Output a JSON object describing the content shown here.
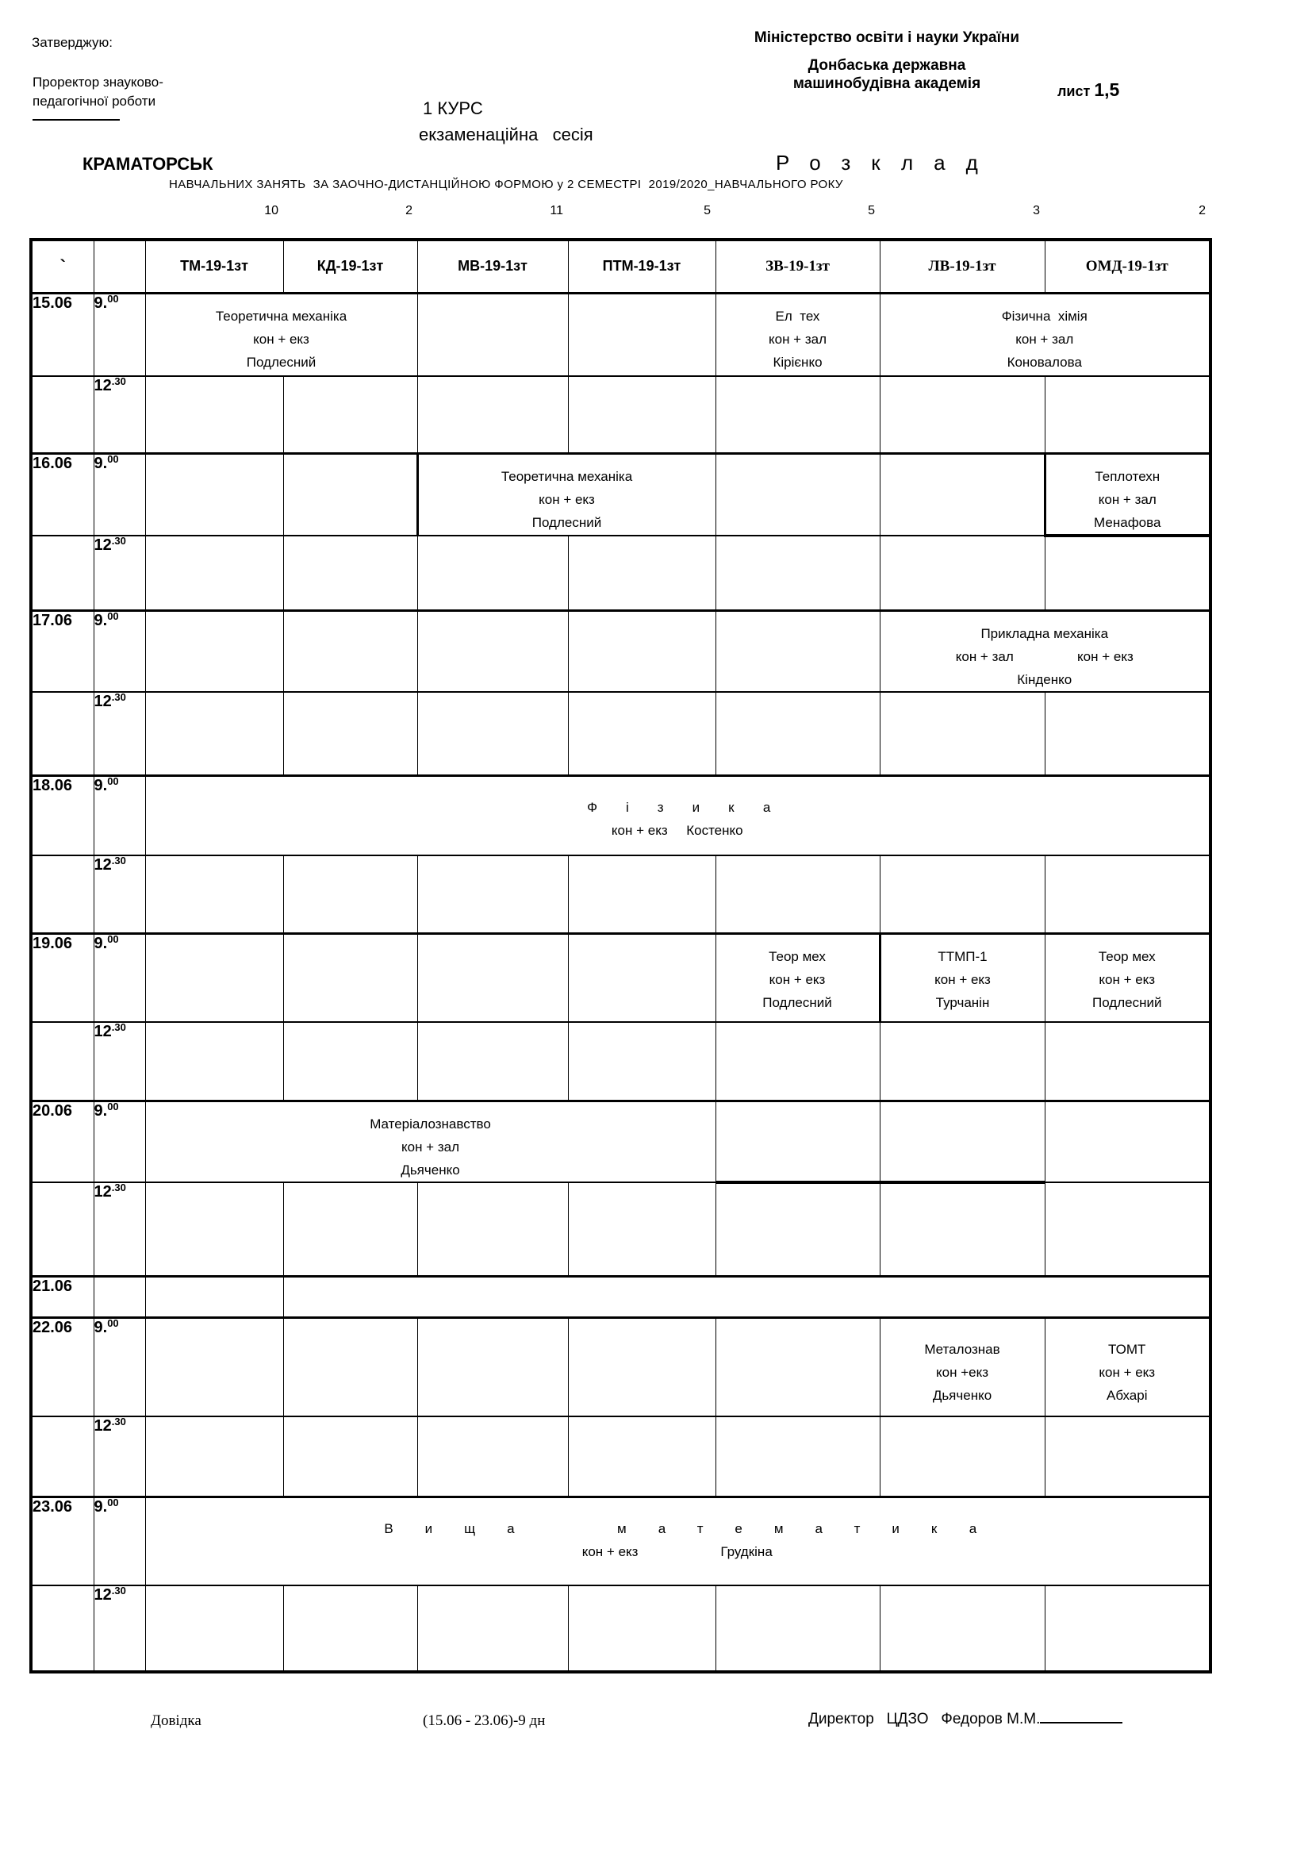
{
  "top_left": {
    "approve": "Затверджую:",
    "prorector_1": "Проректор знауково-",
    "prorector_2": "педагогічної роботи",
    "city": "КРАМАТОРСЬК"
  },
  "top_center": {
    "course": "1 КУРС",
    "session": "екзаменаційна   сесія"
  },
  "top_right": {
    "ministry": "Міністерство освіти і науки України",
    "academy_1": "Донбаська державна",
    "academy_2": "машинобудівна академія",
    "sheet_label": "лист",
    "sheet_value": "1,5",
    "title": "Розклад",
    "subtitle": "НАВЧАЛЬНИХ ЗАНЯТЬ  ЗА ЗАОЧНО-ДИСТАНЦІЙНОЮ ФОРМОЮ у 2 СЕМЕСТРІ  2019/2020_НАВЧАЛЬНОГО РОКУ"
  },
  "counts": [
    "10",
    "2",
    "11",
    "5",
    "5",
    "3",
    "2"
  ],
  "groups": [
    "ТМ-19-1зт",
    "КД-19-1зт",
    "МВ-19-1зт",
    "ПТМ-19-1зт",
    "ЗВ-19-1зт",
    "ЛВ-19-1зт",
    "ОМД-19-1зт"
  ],
  "corner_marker": "`",
  "rows": [
    {
      "date": "15.06",
      "time_b": "9.",
      "time_s": "00",
      "h": 105,
      "sep": "block",
      "cells": [
        {
          "span": 2,
          "lines": [
            "Теоретична механіка",
            "кон + екз",
            "Подлесний"
          ]
        },
        {
          "span": 1
        },
        {
          "span": 1
        },
        {
          "span": 1,
          "lines": [
            "Ел  тех",
            "кон + зал",
            "Кірієнко"
          ]
        },
        {
          "span": 2,
          "lines": [
            "Фізична  хімія",
            "кон + зал",
            "Коновалова"
          ]
        }
      ]
    },
    {
      "marker": "`",
      "time_b": "12",
      "time_s": ".30",
      "h": 97,
      "sep": "inner"
    },
    {
      "date": "16.06",
      "time_b": "9.",
      "time_s": "00",
      "h": 99,
      "sep": "block",
      "cells": [
        {
          "span": 1
        },
        {
          "span": 1
        },
        {
          "span": 2,
          "thick_left": true,
          "lines": [
            "Теоретична механіка",
            "кон + екз",
            "Подлесний"
          ]
        },
        {
          "span": 1
        },
        {
          "span": 1
        },
        {
          "span": 1,
          "thick_left": true,
          "thick_bottom": true,
          "lines": [
            "Теплотехн",
            "кон + зал",
            "Менафова"
          ]
        }
      ]
    },
    {
      "marker": "`",
      "time_b": "12",
      "time_s": ".30",
      "h": 95,
      "sep": "inner"
    },
    {
      "date": "17.06",
      "time_b": "9.",
      "time_s": "00",
      "h": 95,
      "sep": "block",
      "cells": [
        {},
        {},
        {},
        {},
        {},
        {
          "span": 2,
          "lines": [
            "Прикладна механіка",
            "кон + зал                 кон + екз",
            "Кінденко"
          ]
        }
      ]
    },
    {
      "marker": "`",
      "time_b": "12",
      "time_s": ".30",
      "h": 105,
      "sep": "inner"
    },
    {
      "date": "18.06",
      "time_b": "9.",
      "time_s": "00",
      "h": 101,
      "sep": "block",
      "cells": [
        {
          "span": 7,
          "pad": "mid",
          "lines": [
            {
              "t": "Фізика",
              "cls": "spread"
            },
            "кон + екз     Костенко"
          ]
        }
      ]
    },
    {
      "marker": "`",
      "time_b": "12",
      "time_s": ".30",
      "h": 98,
      "sep": "inner"
    },
    {
      "date": "19.06",
      "time_b": "9.",
      "time_s": "00",
      "h": 112,
      "sep": "block",
      "cells": [
        {},
        {},
        {},
        {},
        {
          "lines": [
            "Теор мех",
            "кон + екз",
            "Подлесний"
          ]
        },
        {
          "thick_left": true,
          "lines": [
            "ТТМП-1",
            "кон + екз",
            "Турчанін"
          ]
        },
        {
          "lines": [
            "Теор мех",
            "кон + екз",
            "Подлесний"
          ]
        }
      ]
    },
    {
      "marker": "`",
      "time_b": "12",
      "time_s": ".30",
      "h": 99,
      "sep": "inner"
    },
    {
      "date": "20.06",
      "time_b": "9.",
      "time_s": "00",
      "h": 99,
      "sep": "block",
      "cells": [
        {
          "span": 4,
          "lines": [
            "Матеріалознавство",
            "кон + зал",
            "Дьяченко"
          ]
        },
        {},
        {},
        {}
      ]
    },
    {
      "marker": "`",
      "time_b": "12",
      "time_s": ".30",
      "h": 119,
      "sep": "inner",
      "cells": [
        {},
        {},
        {},
        {},
        {
          "thick_top": true
        },
        {
          "thick_top": true
        },
        {}
      ]
    },
    {
      "date": "21.06",
      "h": 52,
      "sep": "block",
      "cells": [
        {
          "span": 1
        },
        {
          "span": 6
        }
      ]
    },
    {
      "date": "22.06",
      "time_b": "9.",
      "time_s": "00",
      "h": 124,
      "sep": "block",
      "cells": [
        {},
        {},
        {},
        {},
        {},
        {
          "pad": "low",
          "lines": [
            "Металознав",
            "кон +екз",
            "Дьяченко"
          ]
        },
        {
          "pad": "low",
          "lines": [
            "ТОМТ",
            "кон + екз",
            "Абхарі"
          ]
        }
      ]
    },
    {
      "marker": "`",
      "time_b": "12",
      "time_s": ".30",
      "h": 102,
      "sep": "inner"
    },
    {
      "date": "23.06",
      "time_b": "9.",
      "time_s": "00",
      "h": 111,
      "sep": "block",
      "cells": [
        {
          "span": 7,
          "pad": "mid",
          "lines": [
            {
              "t": "Вища  математика",
              "cls": "spread2"
            },
            "кон + екз                      Грудкіна"
          ]
        }
      ]
    },
    {
      "time_b": "12",
      "time_s": ".30",
      "h": 109,
      "sep": "inner"
    }
  ],
  "footer": {
    "help": "Довідка",
    "period": "(15.06 - 23.06)-9 дн",
    "director": "Директор   ЦДЗО   Федоров М.М."
  }
}
